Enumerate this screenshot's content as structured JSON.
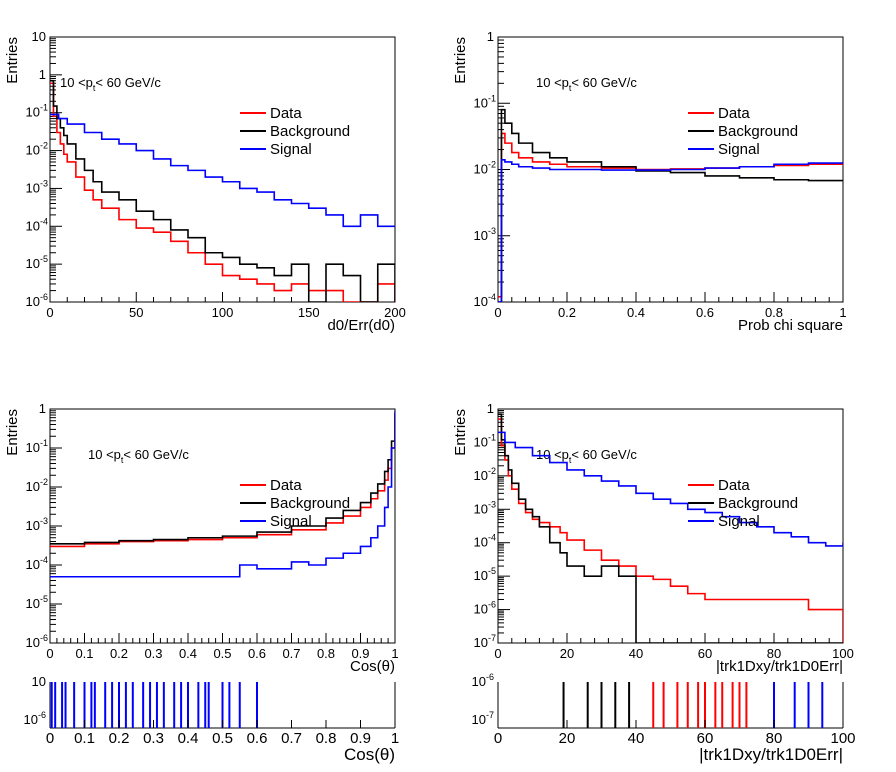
{
  "chart_data": [
    {
      "type": "line",
      "ylabel": "Entries",
      "xlabel": "d0/Err(d0)",
      "annotation": "10 <p",
      "annotation_sub": "t",
      "annotation_tail": "< 60 GeV/c",
      "xlim": [
        0,
        200
      ],
      "ylog": true,
      "ylim_exp": [
        -6,
        1
      ],
      "x_ticks": [
        "0",
        "50",
        "100",
        "150",
        "200"
      ],
      "x_tick_values": [
        0,
        50,
        100,
        150,
        200
      ],
      "legend_placement": "right",
      "series": [
        {
          "name": "Data",
          "color": "#ff0000",
          "x": [
            0,
            2,
            4,
            6,
            8,
            10,
            15,
            20,
            25,
            30,
            40,
            50,
            60,
            70,
            80,
            90,
            100,
            110,
            120,
            130,
            140,
            150,
            160,
            170,
            180,
            190,
            200
          ],
          "y": [
            0.6,
            0.08,
            0.03,
            0.015,
            0.008,
            0.005,
            0.002,
            0.0009,
            0.0005,
            0.0003,
            0.00015,
            9e-05,
            7e-05,
            4e-05,
            2e-05,
            1e-05,
            5e-06,
            4e-06,
            3e-06,
            2e-06,
            3e-06,
            2e-06,
            2e-06,
            1e-06,
            1e-06,
            3e-06,
            1e-06
          ]
        },
        {
          "name": "Background",
          "color": "#000000",
          "x": [
            0,
            2,
            4,
            6,
            8,
            10,
            15,
            20,
            25,
            30,
            40,
            50,
            60,
            70,
            80,
            90,
            100,
            110,
            120,
            130,
            140,
            150,
            160,
            170,
            180,
            190,
            200
          ],
          "y": [
            0.7,
            0.15,
            0.07,
            0.04,
            0.025,
            0.015,
            0.006,
            0.003,
            0.0015,
            0.0008,
            0.0005,
            0.00025,
            0.00015,
            8e-05,
            5e-05,
            2e-05,
            1.5e-05,
            1e-05,
            8e-06,
            5e-06,
            1e-05,
            1e-06,
            1e-05,
            5e-06,
            1e-06,
            1e-05,
            1e-06
          ]
        },
        {
          "name": "Signal",
          "color": "#0000ff",
          "x": [
            0,
            5,
            10,
            20,
            30,
            40,
            50,
            60,
            70,
            80,
            90,
            100,
            110,
            120,
            130,
            140,
            150,
            160,
            170,
            180,
            190,
            200
          ],
          "y": [
            0.09,
            0.07,
            0.05,
            0.03,
            0.02,
            0.015,
            0.01,
            0.006,
            0.004,
            0.003,
            0.002,
            0.0015,
            0.001,
            0.0008,
            0.0005,
            0.0004,
            0.0003,
            0.0002,
            0.0001,
            0.0002,
            0.0001,
            0.0001
          ]
        }
      ]
    },
    {
      "type": "line",
      "ylabel": "Entries",
      "xlabel": "Prob chi square",
      "annotation": "10 <p",
      "annotation_sub": "t",
      "annotation_tail": "< 60 GeV/c",
      "xlim": [
        0,
        1
      ],
      "ylog": true,
      "ylim_exp": [
        -4,
        0
      ],
      "x_ticks": [
        "0",
        "0.2",
        "0.4",
        "0.6",
        "0.8",
        "1"
      ],
      "x_tick_values": [
        0,
        0.2,
        0.4,
        0.6,
        0.8,
        1
      ],
      "legend_placement": "right",
      "series": [
        {
          "name": "Data",
          "color": "#ff0000",
          "x": [
            0,
            0.01,
            0.02,
            0.04,
            0.06,
            0.1,
            0.15,
            0.2,
            0.3,
            0.4,
            0.5,
            0.6,
            0.7,
            0.8,
            0.9,
            1
          ],
          "y": [
            0.00012,
            0.035,
            0.025,
            0.018,
            0.015,
            0.013,
            0.012,
            0.011,
            0.0105,
            0.01,
            0.0102,
            0.0105,
            0.011,
            0.0115,
            0.012,
            0.013
          ]
        },
        {
          "name": "Background",
          "color": "#000000",
          "x": [
            0,
            0.01,
            0.02,
            0.04,
            0.06,
            0.1,
            0.15,
            0.2,
            0.3,
            0.4,
            0.5,
            0.6,
            0.7,
            0.8,
            0.9,
            1
          ],
          "y": [
            0.0001,
            0.08,
            0.05,
            0.035,
            0.025,
            0.018,
            0.015,
            0.013,
            0.011,
            0.0095,
            0.009,
            0.008,
            0.0075,
            0.007,
            0.0068,
            0.0068
          ]
        },
        {
          "name": "Signal",
          "color": "#0000ff",
          "x": [
            0,
            0.01,
            0.02,
            0.04,
            0.06,
            0.1,
            0.15,
            0.2,
            0.3,
            0.4,
            0.5,
            0.6,
            0.7,
            0.8,
            0.9,
            1
          ],
          "y": [
            0.0001,
            0.014,
            0.013,
            0.012,
            0.011,
            0.0105,
            0.01,
            0.01,
            0.0098,
            0.0098,
            0.01,
            0.0105,
            0.011,
            0.012,
            0.0125,
            0.013
          ]
        }
      ]
    },
    {
      "type": "line",
      "ylabel": "Entries",
      "xlabel": "Cos(θ)",
      "annotation": "10 <p",
      "annotation_sub": "t",
      "annotation_tail": "< 60 GeV/c",
      "xlim": [
        0,
        1
      ],
      "ylog": true,
      "ylim_exp": [
        -6,
        0
      ],
      "x_ticks": [
        "0",
        "0.1",
        "0.2",
        "0.3",
        "0.4",
        "0.5",
        "0.6",
        "0.7",
        "0.8",
        "0.9",
        "1"
      ],
      "x_tick_values": [
        0,
        0.1,
        0.2,
        0.3,
        0.4,
        0.5,
        0.6,
        0.7,
        0.8,
        0.9,
        1
      ],
      "legend_placement": "right",
      "series": [
        {
          "name": "Data",
          "color": "#ff0000",
          "x": [
            0,
            0.1,
            0.2,
            0.3,
            0.4,
            0.5,
            0.6,
            0.7,
            0.8,
            0.85,
            0.9,
            0.93,
            0.95,
            0.97,
            0.98,
            0.99,
            1
          ],
          "y": [
            0.0003,
            0.00035,
            0.0004,
            0.00042,
            0.00045,
            0.0005,
            0.0006,
            0.0008,
            0.0012,
            0.0018,
            0.003,
            0.005,
            0.008,
            0.015,
            0.03,
            0.1,
            0.7
          ]
        },
        {
          "name": "Background",
          "color": "#000000",
          "x": [
            0,
            0.1,
            0.2,
            0.3,
            0.4,
            0.5,
            0.6,
            0.7,
            0.8,
            0.85,
            0.9,
            0.93,
            0.95,
            0.97,
            0.98,
            0.99,
            1
          ],
          "y": [
            0.00035,
            0.00038,
            0.00042,
            0.00045,
            0.0005,
            0.00055,
            0.0007,
            0.001,
            0.0016,
            0.0025,
            0.004,
            0.007,
            0.012,
            0.025,
            0.05,
            0.15,
            0.8
          ]
        },
        {
          "name": "Signal",
          "color": "#0000ff",
          "x": [
            0,
            0.1,
            0.2,
            0.3,
            0.4,
            0.5,
            0.55,
            0.6,
            0.65,
            0.7,
            0.75,
            0.8,
            0.85,
            0.9,
            0.93,
            0.95,
            0.97,
            0.98,
            0.99,
            1
          ],
          "y": [
            5e-05,
            5e-05,
            5e-05,
            5e-05,
            5e-05,
            5e-05,
            0.0001,
            8e-05,
            8e-05,
            0.00012,
            0.0001,
            0.00015,
            0.0002,
            0.0003,
            0.0005,
            0.001,
            0.003,
            0.01,
            0.1,
            0.9
          ]
        }
      ]
    },
    {
      "type": "line",
      "ylabel": "Entries",
      "xlabel": "|trk1Dxy/trk1D0Err|",
      "annotation": "10 <p",
      "annotation_sub": "t",
      "annotation_tail": "< 60 GeV/c",
      "xlim": [
        0,
        100
      ],
      "ylog": true,
      "ylim_exp": [
        -7,
        0
      ],
      "x_ticks": [
        "0",
        "20",
        "40",
        "60",
        "80",
        "100"
      ],
      "x_tick_values": [
        0,
        20,
        40,
        60,
        80,
        100
      ],
      "legend_placement": "right",
      "series": [
        {
          "name": "Data",
          "color": "#ff0000",
          "x": [
            0,
            1,
            2,
            3,
            4,
            6,
            8,
            10,
            12,
            15,
            18,
            20,
            25,
            30,
            35,
            40,
            45,
            50,
            55,
            60,
            70,
            80,
            90,
            100
          ],
          "y": [
            0.5,
            0.08,
            0.03,
            0.01,
            0.004,
            0.0015,
            0.0008,
            0.0005,
            0.0004,
            0.0003,
            0.0002,
            0.00012,
            6e-05,
            3e-05,
            2e-05,
            1e-05,
            8e-06,
            5e-06,
            3e-06,
            2e-06,
            2e-06,
            2e-06,
            1e-06,
            1e-07
          ]
        },
        {
          "name": "Background",
          "color": "#000000",
          "x": [
            0,
            1,
            2,
            3,
            4,
            6,
            8,
            10,
            12,
            15,
            18,
            20,
            25,
            30,
            35,
            40
          ],
          "y": [
            0.7,
            0.12,
            0.04,
            0.015,
            0.006,
            0.002,
            0.001,
            0.0006,
            0.0003,
            0.0001,
            5e-05,
            2e-05,
            1e-05,
            2e-05,
            1e-05,
            1e-07
          ]
        },
        {
          "name": "Signal",
          "color": "#0000ff",
          "x": [
            0,
            2,
            5,
            10,
            15,
            20,
            25,
            30,
            35,
            40,
            45,
            50,
            55,
            60,
            65,
            70,
            75,
            80,
            85,
            90,
            95,
            100
          ],
          "y": [
            0.2,
            0.1,
            0.07,
            0.04,
            0.025,
            0.015,
            0.01,
            0.007,
            0.005,
            0.003,
            0.002,
            0.0015,
            0.001,
            0.0008,
            0.0006,
            0.0004,
            0.0003,
            0.0002,
            0.00015,
            0.0001,
            8e-05,
            0.0001
          ]
        }
      ]
    }
  ],
  "strips": [
    {
      "xlabel": "Cos(θ)",
      "x_ticks": [
        "0",
        "0.1",
        "0.2",
        "0.3",
        "0.4",
        "0.5",
        "0.6",
        "0.7",
        "0.8",
        "0.9",
        "1"
      ],
      "x_tick_values": [
        0,
        0.1,
        0.2,
        0.3,
        0.4,
        0.5,
        0.6,
        0.7,
        0.8,
        0.9,
        1
      ],
      "xlim": [
        0,
        1
      ],
      "y_labels": [
        "10",
        "10"
      ],
      "y_sups": [
        "",
        "-6"
      ],
      "bars": [
        {
          "color": "#0000ff",
          "x": [
            0.005,
            0.015,
            0.035,
            0.045,
            0.07,
            0.1,
            0.12,
            0.13,
            0.16,
            0.18,
            0.2,
            0.22,
            0.24,
            0.27,
            0.29,
            0.31,
            0.33,
            0.36,
            0.38,
            0.4,
            0.43,
            0.45,
            0.46,
            0.5,
            0.52,
            0.55,
            0.6
          ]
        }
      ]
    },
    {
      "xlabel": "|trk1Dxy/trk1D0Err|",
      "x_ticks": [
        "0",
        "20",
        "40",
        "60",
        "80",
        "100"
      ],
      "x_tick_values": [
        0,
        20,
        40,
        60,
        80,
        100
      ],
      "xlim": [
        0,
        100
      ],
      "y_labels": [
        "10",
        "10"
      ],
      "y_sups": [
        "-6",
        "-7"
      ],
      "bars": [
        {
          "color": "#000000",
          "x": [
            19,
            26,
            30,
            34,
            38
          ]
        },
        {
          "color": "#ff0000",
          "x": [
            45,
            48,
            52,
            55,
            58,
            60,
            63,
            65,
            68,
            70,
            72
          ]
        },
        {
          "color": "#0000ff",
          "x": [
            80,
            86,
            90,
            94
          ]
        }
      ]
    }
  ]
}
